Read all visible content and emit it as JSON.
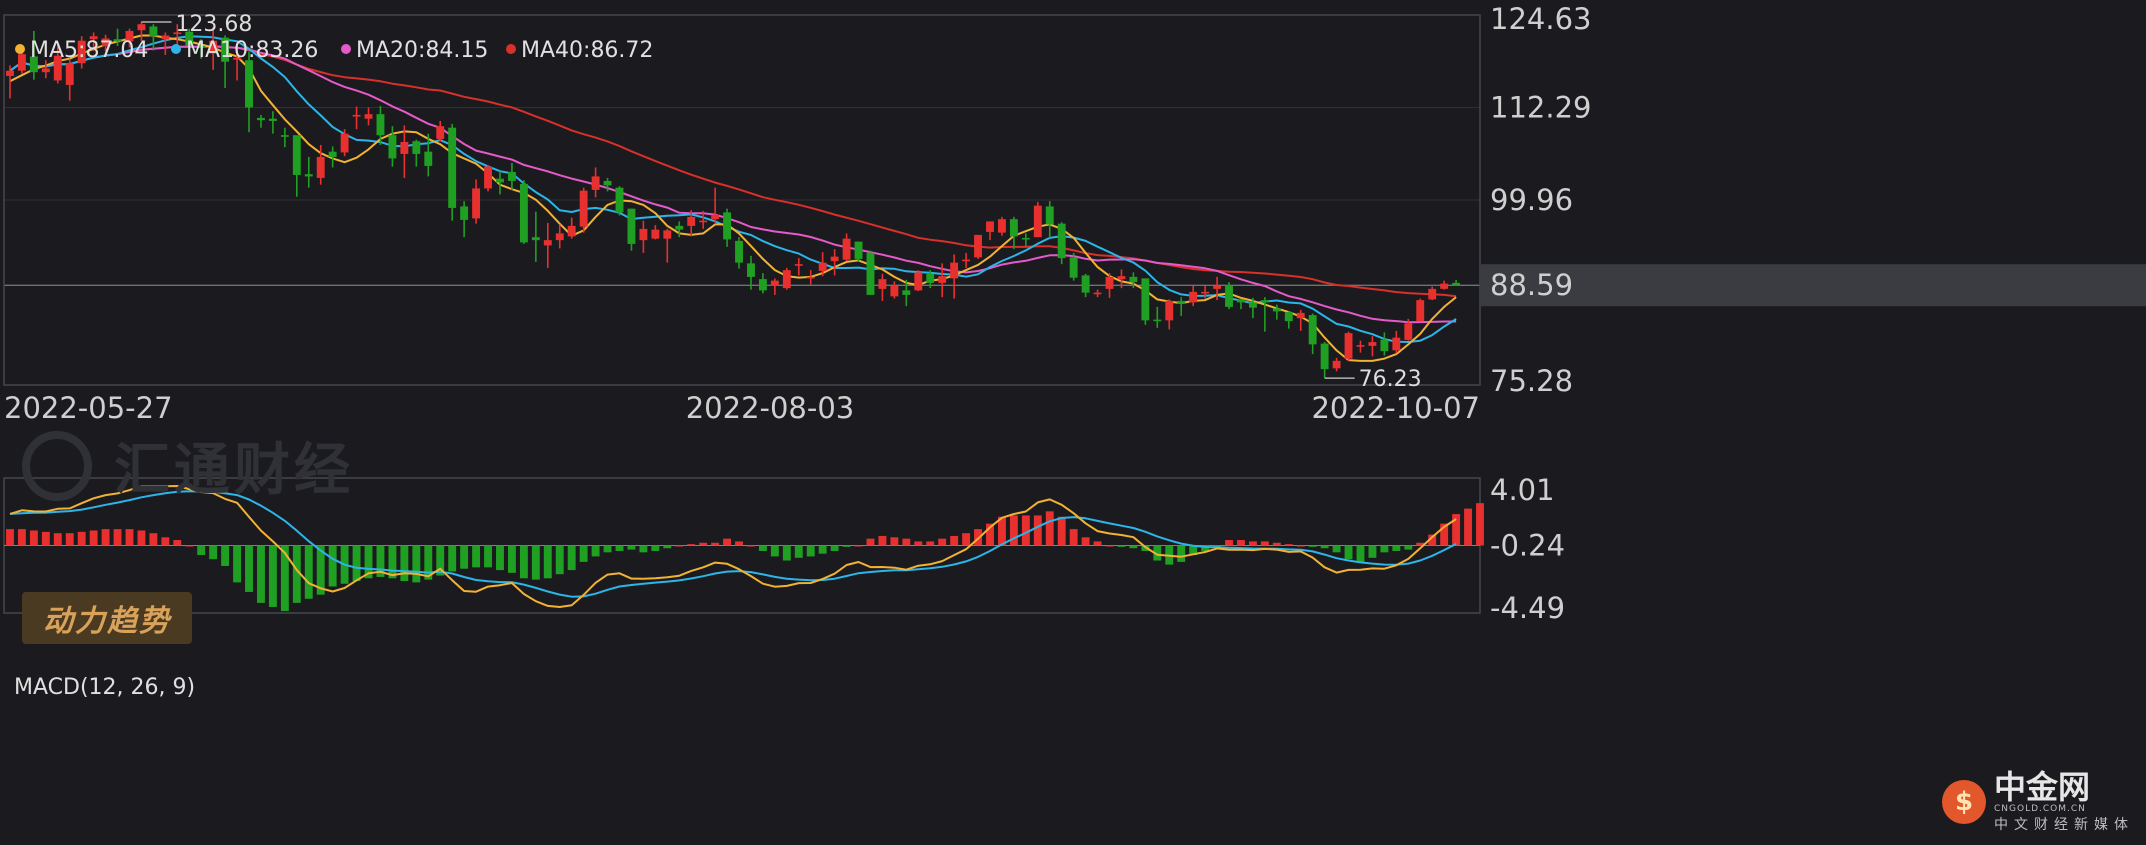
{
  "colors": {
    "up": "#e8302f",
    "down": "#1fa022",
    "ma5": "#f2b233",
    "ma10": "#2cb5e8",
    "ma20": "#e55ac9",
    "ma40": "#d8302a",
    "macd_dif": "#f2b233",
    "macd_dea": "#2cb5e8",
    "grid": "#2e3036",
    "frame": "#45474d"
  },
  "chart_data": [
    {
      "type": "candlestick",
      "price_axis_ticks": [
        "124.63",
        "112.29",
        "99.96",
        "88.59",
        "75.28"
      ],
      "current_price_label": "88.59",
      "high_label": "123.68",
      "low_label": "76.23",
      "date_labels": [
        "2022-05-27",
        "2022-08-03",
        "2022-10-07"
      ],
      "legend": [
        {
          "text": "MA5:87.04",
          "color": "#f2b233"
        },
        {
          "text": "MA10:83.26",
          "color": "#2cb5e8"
        },
        {
          "text": "MA20:84.15",
          "color": "#e55ac9"
        },
        {
          "text": "MA40:86.72",
          "color": "#d8302a"
        }
      ],
      "ylim": [
        75.28,
        124.63
      ],
      "candles": [
        [
          116.5,
          117.2,
          113.5,
          117.9
        ],
        [
          117.2,
          119.4,
          116.8,
          120
        ],
        [
          119.1,
          117,
          116,
          122.5
        ],
        [
          117,
          117.5,
          116.2,
          118.6
        ],
        [
          115.9,
          119.2,
          115.5,
          121
        ],
        [
          115.3,
          118.2,
          113.2,
          118.8
        ],
        [
          118.2,
          121.2,
          117.5,
          121.8
        ],
        [
          121.4,
          121.8,
          119.8,
          122.3
        ],
        [
          120.5,
          121.5,
          119.8,
          122
        ],
        [
          121.4,
          121.1,
          120.5,
          122.8
        ],
        [
          121.1,
          122.5,
          120.3,
          122.8
        ],
        [
          122.6,
          123.4,
          121.2,
          123.7
        ],
        [
          123.1,
          121.8,
          119.9,
          123.4
        ],
        [
          121.4,
          121.9,
          119.3,
          122.3
        ],
        [
          122.1,
          122.3,
          120.6,
          123.4
        ],
        [
          122.4,
          120.5,
          119.8,
          122.8
        ],
        [
          120.5,
          120.4,
          118.8,
          121.4
        ],
        [
          119.5,
          121.2,
          117.3,
          123
        ],
        [
          121.6,
          118.4,
          114.9,
          121.9
        ],
        [
          118.7,
          118.9,
          115.9,
          120.5
        ],
        [
          118.6,
          112.3,
          109,
          119.7
        ],
        [
          110.9,
          110.6,
          109.6,
          111.3
        ],
        [
          110.8,
          110.5,
          108.8,
          111.8
        ],
        [
          108.6,
          108.4,
          107,
          109.6
        ],
        [
          108.6,
          103.3,
          100.4,
          108.5
        ],
        [
          103.4,
          103.1,
          101.6,
          105.7
        ],
        [
          102.9,
          105.7,
          102,
          107.3
        ],
        [
          106.4,
          105.7,
          104.3,
          107.1
        ],
        [
          106.3,
          108.8,
          105.8,
          109.4
        ],
        [
          111.1,
          111.3,
          109.4,
          112.4
        ],
        [
          110.8,
          111.4,
          109.9,
          112.3
        ],
        [
          111.4,
          108.6,
          107.3,
          112.5
        ],
        [
          108.6,
          105.5,
          104.4,
          109.8
        ],
        [
          106.1,
          107.7,
          102.9,
          109.9
        ],
        [
          107.8,
          106.1,
          104.4,
          108
        ],
        [
          106.4,
          104.5,
          103.1,
          108.8
        ],
        [
          108.1,
          109.8,
          107.8,
          110.5
        ],
        [
          109.6,
          98.9,
          97.2,
          110.1
        ],
        [
          99.1,
          97.3,
          95,
          99.8
        ],
        [
          97.5,
          101.5,
          96.8,
          102.7
        ],
        [
          101.5,
          104.4,
          101.1,
          104.6
        ],
        [
          102.8,
          102.3,
          100.7,
          103.8
        ],
        [
          103.7,
          102.5,
          101.3,
          104.9
        ],
        [
          102.1,
          94.3,
          94.1,
          102.6
        ],
        [
          95,
          94.6,
          91.7,
          98.4
        ],
        [
          93.9,
          94.6,
          90.9,
          96.9
        ],
        [
          94.6,
          95.5,
          93.5,
          96.7
        ],
        [
          95.1,
          96.5,
          94.8,
          97.6
        ],
        [
          96.4,
          101.2,
          95.6,
          101.6
        ],
        [
          101.3,
          103.1,
          100.3,
          104.3
        ],
        [
          102.5,
          101.9,
          101.1,
          102.9
        ],
        [
          101.6,
          98.3,
          97.9,
          101.8
        ],
        [
          98.8,
          94.1,
          93.2,
          98.8
        ],
        [
          94.6,
          96.1,
          92.9,
          97.2
        ],
        [
          94.8,
          96,
          94.7,
          96.6
        ],
        [
          94.8,
          95.9,
          91.6,
          96.1
        ],
        [
          96.5,
          96,
          95,
          97.1
        ],
        [
          96.5,
          97.7,
          95.1,
          98.6
        ],
        [
          97.1,
          97.2,
          96.1,
          98.5
        ],
        [
          97.4,
          98,
          96.9,
          101.6
        ],
        [
          98.3,
          94.7,
          93.7,
          98.8
        ],
        [
          94.5,
          91.6,
          90.8,
          95
        ],
        [
          91.5,
          89.7,
          88,
          92.5
        ],
        [
          89.4,
          87.9,
          87.5,
          90.2
        ],
        [
          88.5,
          89.2,
          87.3,
          89.5
        ],
        [
          88.2,
          90.6,
          88,
          90.9
        ],
        [
          91.2,
          91.4,
          89.9,
          92.2
        ],
        [
          89.7,
          89.7,
          88.7,
          90.6
        ],
        [
          90.5,
          91.6,
          89.8,
          93
        ],
        [
          91.8,
          92.4,
          89.9,
          93.4
        ],
        [
          92,
          94.8,
          91.8,
          95.5
        ],
        [
          94.4,
          92.1,
          91.8,
          94.4
        ],
        [
          92.9,
          87.3,
          87.3,
          93.2
        ],
        [
          88.1,
          89.4,
          86.5,
          90.1
        ],
        [
          87.1,
          88.5,
          86.8,
          89.1
        ],
        [
          87.9,
          87.3,
          85.8,
          89.3
        ],
        [
          87.9,
          90.3,
          87.8,
          90.6
        ],
        [
          90.1,
          88.9,
          88.2,
          90.6
        ],
        [
          88.9,
          89.8,
          87,
          91.5
        ],
        [
          89.5,
          91.6,
          86.8,
          92.7
        ],
        [
          91.9,
          92,
          90.9,
          92.9
        ],
        [
          92.3,
          95.3,
          92.1,
          95.3
        ],
        [
          95.7,
          97.1,
          94.6,
          97.1
        ],
        [
          95.6,
          97.4,
          95.2,
          97.7
        ],
        [
          97.4,
          95.1,
          93.4,
          97.7
        ],
        [
          94.9,
          94.8,
          93.8,
          95.5
        ],
        [
          95,
          99.2,
          95,
          99.7
        ],
        [
          99.1,
          96.7,
          94.9,
          99.8
        ],
        [
          96.8,
          92.2,
          91.4,
          97
        ],
        [
          92.3,
          89.6,
          89.2,
          92.9
        ],
        [
          89.9,
          87.6,
          87,
          90.1
        ],
        [
          87.5,
          87.6,
          87,
          88
        ],
        [
          88.1,
          89.7,
          86.9,
          90.2
        ],
        [
          89.4,
          89.8,
          88.2,
          90.7
        ],
        [
          89.7,
          89,
          88.2,
          90.3
        ],
        [
          89.5,
          83.9,
          83.3,
          89.5
        ],
        [
          84,
          83.8,
          82.9,
          85.7
        ],
        [
          83.9,
          86.5,
          82.7,
          86.7
        ],
        [
          86.5,
          86.1,
          84.5,
          87
        ],
        [
          86.3,
          87.7,
          85.8,
          88.5
        ],
        [
          87.5,
          87.7,
          86.8,
          88.5
        ],
        [
          88.1,
          88.5,
          86.6,
          89.7
        ],
        [
          88.6,
          85.7,
          85.4,
          89
        ],
        [
          86.7,
          86.3,
          85.4,
          86.8
        ],
        [
          86.3,
          85.6,
          84.2,
          86.9
        ],
        [
          86.6,
          86.3,
          82.4,
          87
        ],
        [
          85.5,
          85.1,
          84,
          86
        ],
        [
          85,
          83.8,
          82.8,
          85.1
        ],
        [
          84.2,
          84.9,
          82.5,
          85.3
        ],
        [
          84.6,
          80.7,
          79.4,
          84.8
        ],
        [
          80.8,
          77.4,
          76.2,
          81
        ],
        [
          77.5,
          78.5,
          77.1,
          78.9
        ],
        [
          78.8,
          82.2,
          78.5,
          82.4
        ],
        [
          80.5,
          80.6,
          79.6,
          81.2
        ],
        [
          80.5,
          81,
          79.1,
          81.8
        ],
        [
          81.3,
          79.8,
          79.2,
          82.3
        ],
        [
          79.9,
          81.6,
          79.5,
          82.5
        ],
        [
          81.3,
          83.5,
          81.2,
          84.1
        ],
        [
          83.8,
          86.6,
          83.8,
          86.8
        ],
        [
          86.7,
          88.1,
          86.6,
          88.4
        ],
        [
          88.1,
          88.8,
          88,
          89.2
        ],
        [
          88.9,
          88.6,
          88.5,
          89.3
        ]
      ],
      "ma5": [
        115.8,
        116.6,
        117.4,
        117.9,
        118.5,
        118.8,
        119.5,
        120.1,
        120.7,
        121.1,
        121.5,
        121.9,
        121.9,
        121.6,
        121.4,
        121.1,
        120.7,
        120.3,
        119.6,
        119.1,
        117.5,
        114.5,
        112.6,
        110.7,
        109.1,
        107.4,
        106.2,
        105.5,
        105,
        105.6,
        106.7,
        108.1,
        108.8,
        109.1,
        109,
        108.1,
        107.4,
        106.2,
        105.5,
        104.8,
        103.5,
        102,
        101.4,
        100.9,
        100,
        98.5,
        96.8,
        95.2,
        95.9,
        97.7,
        99.3,
        99.9,
        99.8,
        99.3,
        98.2,
        96.5,
        95.5,
        95.3,
        95.5,
        96.7,
        96.7,
        95.5,
        93.8,
        92.1,
        90.6,
        89.8,
        89.6,
        89.7,
        90.2,
        91,
        91.7,
        91.9,
        91.3,
        90.7,
        89.7,
        88.9,
        88.6,
        89.2,
        89.4,
        89.9,
        90.6,
        91.3,
        92.4,
        93.8,
        95.2,
        95.8,
        96.4,
        96.7,
        96.1,
        94.9,
        92.9,
        91,
        89.8,
        89.1,
        88.8,
        87.9,
        86.7,
        86.4,
        86.2,
        86.5,
        86.6,
        87.3,
        87.5,
        86.9,
        86.5,
        86,
        85.5,
        85,
        84.4,
        83.5,
        81.6,
        79.9,
        78.6,
        78.5,
        78.5,
        78.8,
        79.4,
        80.7,
        82.1,
        84.1,
        85.7,
        87
      ]
    },
    {
      "type": "bar+line",
      "title": "MACD(12, 26, 9)",
      "axis_ticks": [
        "4.01",
        "-0.24",
        "-4.49"
      ],
      "ylim": [
        -4.49,
        4.01
      ],
      "histogram": [
        1.2,
        1.2,
        1.1,
        1,
        0.9,
        0.9,
        1,
        1.1,
        1.2,
        1.2,
        1.2,
        1.1,
        0.9,
        0.6,
        0.4,
        0,
        -0.7,
        -1,
        -1.5,
        -2.7,
        -3.4,
        -4.2,
        -4.5,
        -4.8,
        -4.2,
        -3.9,
        -3.6,
        -3,
        -2.8,
        -2.6,
        -2.4,
        -2.3,
        -2.4,
        -2.6,
        -2.7,
        -2.5,
        -2.2,
        -1.9,
        -1.7,
        -1.6,
        -1.6,
        -1.8,
        -2,
        -2.4,
        -2.5,
        -2.4,
        -2.1,
        -1.8,
        -1.2,
        -0.8,
        -0.5,
        -0.4,
        -0.3,
        -0.5,
        -0.4,
        -0.2,
        0,
        0.1,
        0.2,
        0.2,
        0.5,
        0.3,
        0,
        -0.4,
        -0.8,
        -1.1,
        -0.9,
        -0.8,
        -0.6,
        -0.4,
        -0.1,
        0,
        0.5,
        0.7,
        0.6,
        0.5,
        0.3,
        0.3,
        0.5,
        0.7,
        0.9,
        1.2,
        1.6,
        2.1,
        2.2,
        2.2,
        2.2,
        2.5,
        2.1,
        1.2,
        0.6,
        0.3,
        0,
        -0.1,
        -0.2,
        -0.4,
        -1.1,
        -1.4,
        -1.2,
        -0.7,
        -0.4,
        -0.1,
        0.4,
        0.4,
        0.3,
        0.3,
        0.2,
        0.1,
        0,
        -0.1,
        -0.2,
        -0.5,
        -1,
        -1.2,
        -0.9,
        -0.5,
        -0.4,
        -0.3,
        0.2,
        0.8,
        1.6,
        2.3,
        2.7,
        3.1
      ]
    }
  ],
  "overlay": {
    "badge_label": "动力趋势",
    "watermark_text": "汇通财经",
    "brand_name": "中金网",
    "brand_domain": "CNGOLD.COM.CN",
    "brand_tagline": "中文财经新媒体"
  }
}
